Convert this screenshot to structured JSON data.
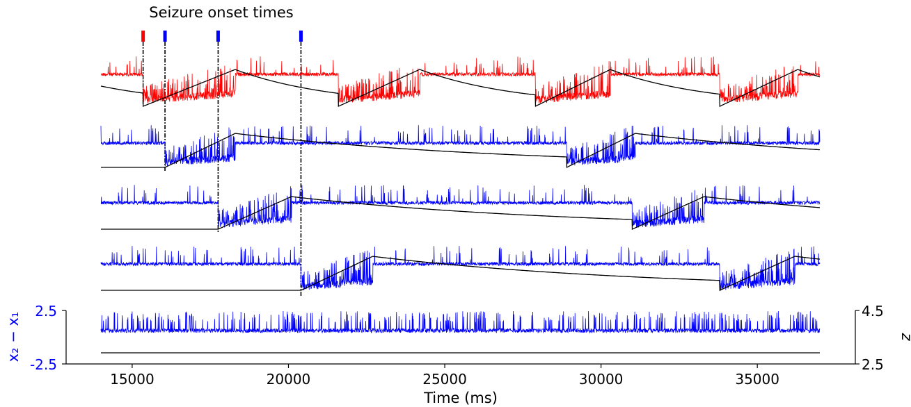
{
  "chart_data": {
    "type": "line",
    "title": "Seizure onset times",
    "xlabel": "Time (ms)",
    "ylabel_left": "x₂ − x₁",
    "ylabel_right": "z",
    "xlim": [
      14000,
      37000
    ],
    "x_ticks": [
      15000,
      20000,
      25000,
      30000,
      35000
    ],
    "y_left_ticks": [
      "2.5",
      "-2.5"
    ],
    "y_left_range": [
      -2.5,
      2.5
    ],
    "y_right_ticks": [
      "4.5",
      "2.5"
    ],
    "y_right_range": [
      2.5,
      4.5
    ],
    "colors": {
      "seizing_first": "#ff0000",
      "seizing": "#0000ff",
      "z": "#000000",
      "onset_line": "#000000"
    },
    "onset_markers": [
      {
        "time": 15350,
        "color": "#ff0000"
      },
      {
        "time": 16050,
        "color": "#0000ff"
      },
      {
        "time": 17750,
        "color": "#0000ff"
      },
      {
        "time": 20400,
        "color": "#0000ff"
      }
    ],
    "channels": [
      {
        "color": "#ff0000",
        "seizure_intervals": [
          [
            15350,
            18300
          ],
          [
            21600,
            24200
          ],
          [
            27900,
            30300
          ],
          [
            33800,
            36300
          ]
        ]
      },
      {
        "color": "#0000ff",
        "seizure_intervals": [
          [
            16050,
            18300
          ],
          [
            28900,
            31100
          ]
        ]
      },
      {
        "color": "#0000ff",
        "seizure_intervals": [
          [
            17750,
            20100
          ],
          [
            31000,
            33300
          ]
        ]
      },
      {
        "color": "#0000ff",
        "seizure_intervals": [
          [
            20400,
            22700
          ],
          [
            33800,
            36200
          ]
        ]
      },
      {
        "color": "#0000ff",
        "seizure_intervals": []
      }
    ]
  }
}
